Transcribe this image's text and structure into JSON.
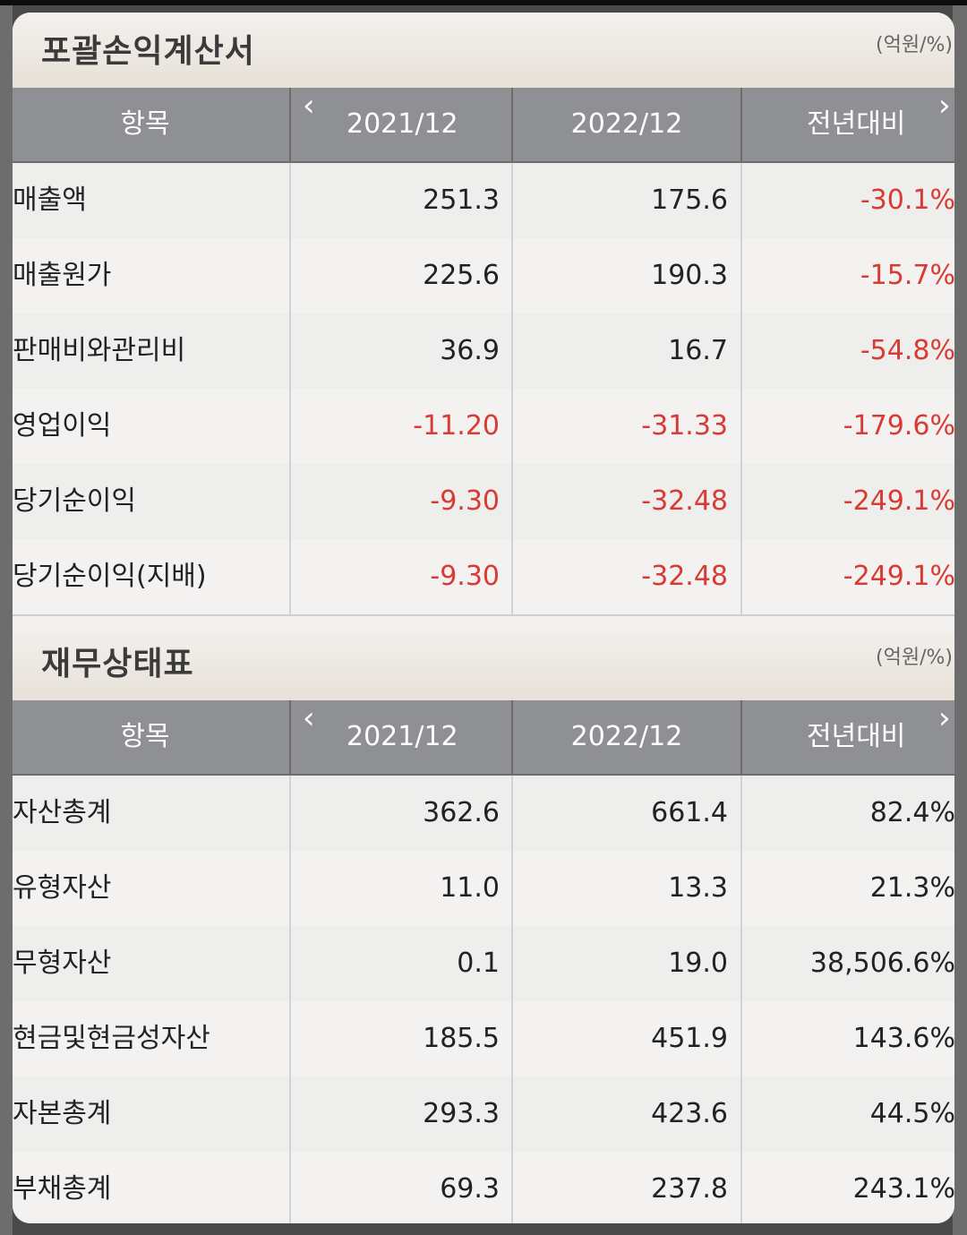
{
  "income": {
    "title": "포괄손익계산서",
    "unit": "(억원/%)",
    "headers": [
      "항목",
      "2021/12",
      "2022/12",
      "전년대비"
    ],
    "rows": [
      {
        "item": "매출액",
        "y2021": "251.3",
        "y2022": "175.6",
        "yoy": "-30.1%"
      },
      {
        "item": "매출원가",
        "y2021": "225.6",
        "y2022": "190.3",
        "yoy": "-15.7%"
      },
      {
        "item": "판매비와관리비",
        "y2021": "36.9",
        "y2022": "16.7",
        "yoy": "-54.8%"
      },
      {
        "item": "영업이익",
        "y2021": "-11.20",
        "y2022": "-31.33",
        "yoy": "-179.6%"
      },
      {
        "item": "당기순이익",
        "y2021": "-9.30",
        "y2022": "-32.48",
        "yoy": "-249.1%"
      },
      {
        "item": "당기순이익(지배)",
        "y2021": "-9.30",
        "y2022": "-32.48",
        "yoy": "-249.1%"
      }
    ]
  },
  "balance": {
    "title": "재무상태표",
    "unit": "(억원/%)",
    "headers": [
      "항목",
      "2021/12",
      "2022/12",
      "전년대비"
    ],
    "rows": [
      {
        "item": "자산총계",
        "y2021": "362.6",
        "y2022": "661.4",
        "yoy": "82.4%"
      },
      {
        "item": "유형자산",
        "y2021": "11.0",
        "y2022": "13.3",
        "yoy": "21.3%"
      },
      {
        "item": "무형자산",
        "y2021": "0.1",
        "y2022": "19.0",
        "yoy": "38,506.6%"
      },
      {
        "item": "현금및현금성자산",
        "y2021": "185.5",
        "y2022": "451.9",
        "yoy": "143.6%"
      },
      {
        "item": "자본총계",
        "y2021": "293.3",
        "y2022": "423.6",
        "yoy": "44.5%"
      },
      {
        "item": "부채총계",
        "y2021": "69.3",
        "y2022": "237.8",
        "yoy": "243.1%"
      }
    ]
  },
  "colors": {
    "negative": "#d93a33",
    "header_bg": "#8f9094"
  },
  "icons": {
    "prev": "chevron-left-icon",
    "next": "chevron-right-icon"
  }
}
